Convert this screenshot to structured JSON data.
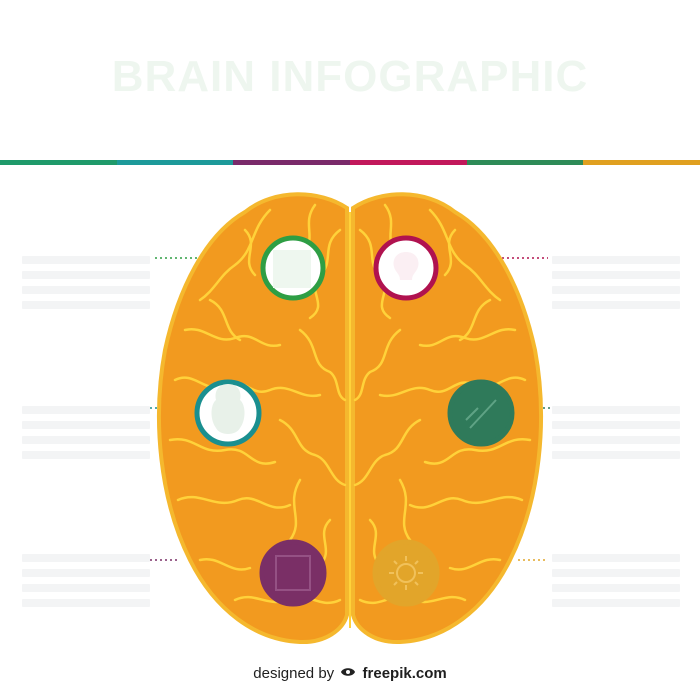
{
  "header": {
    "title": "BRAIN INFOGRAPHIC",
    "subtitle": "",
    "stripe_colors": [
      "#1f9a6a",
      "#1d9a9a",
      "#7a2a6a",
      "#c2185b",
      "#2e8b57",
      "#e0a020"
    ]
  },
  "colors": {
    "brain_fill": "#f29a1f",
    "brain_line": "#ffd23a",
    "brain_outline": "#f5b82e"
  },
  "circles": [
    {
      "id": "top-left",
      "ring": "#2e9e44",
      "fill": "#ffffff",
      "icon": "square-icon"
    },
    {
      "id": "top-right",
      "ring": "#b0124f",
      "fill": "#ffffff",
      "icon": "bulb-icon"
    },
    {
      "id": "mid-left",
      "ring": "#1a8f8f",
      "fill": "#ffffff",
      "icon": "head-icon"
    },
    {
      "id": "mid-right",
      "ring": "#2f7a5a",
      "fill": "#2f7a5a",
      "icon": "chart-icon"
    },
    {
      "id": "bottom-left",
      "ring": "#7a2f66",
      "fill": "#7a2f66",
      "icon": "book-icon"
    },
    {
      "id": "bottom-right",
      "ring": "#e2a52a",
      "fill": "#e2a52a",
      "icon": "gear-icon"
    }
  ],
  "text_blocks": [
    {
      "side": "left",
      "title": "",
      "lines": 4
    },
    {
      "side": "left",
      "title": "",
      "lines": 4
    },
    {
      "side": "left",
      "title": "",
      "lines": 4
    },
    {
      "side": "right",
      "title": "",
      "lines": 4
    },
    {
      "side": "right",
      "title": "",
      "lines": 4
    },
    {
      "side": "right",
      "title": "",
      "lines": 4
    }
  ],
  "credit": {
    "prefix": "designed by",
    "brand": "freepik.com"
  }
}
